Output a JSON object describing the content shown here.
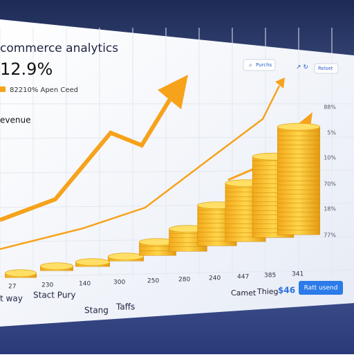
{
  "header": {
    "title": "commerce analytics",
    "kpi": "12.9%",
    "legend": "82210% Apen Ceed",
    "section": "evenue"
  },
  "toolbar": {
    "search": "Purchs",
    "action": "Relset"
  },
  "right_labels": [
    "88%",
    "5%",
    "10%",
    "70%",
    "18%",
    "77%"
  ],
  "bottom_labels": [
    "27",
    "230",
    "140",
    "300",
    "250",
    "280",
    "240",
    "447",
    "385",
    "341"
  ],
  "tabs": [
    "t way",
    "Stact Pury",
    "Stang",
    "Taffs"
  ],
  "footer": {
    "label1": "Camet",
    "label2": "Thieg",
    "amount": "$46",
    "button": "Ratt usend"
  }
}
